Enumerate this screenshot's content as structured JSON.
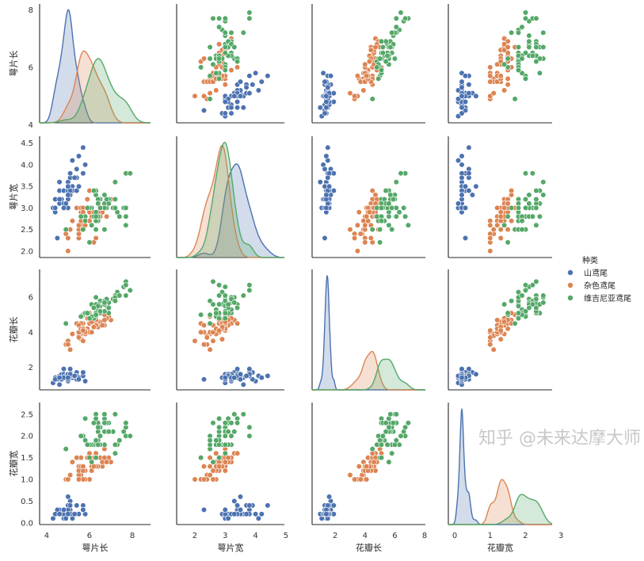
{
  "chart_data": {
    "type": "scatter",
    "subtype": "pairplot",
    "variables": [
      "萼片长",
      "萼片宽",
      "花瓣长",
      "花瓣宽"
    ],
    "diagonal": "kde",
    "grid": false,
    "legend": {
      "title": "种类",
      "placement": "right",
      "entries": [
        "山鸢尾",
        "杂色鸢尾",
        "维吉尼亚鸢尾"
      ]
    },
    "colors": [
      "#4c72b0",
      "#dd8452",
      "#55a868"
    ],
    "axis_ticks": [
      [
        4,
        6,
        8
      ],
      [
        "2.0",
        "2.5",
        "3.0",
        "3.5",
        "4.0",
        "4.5"
      ],
      [
        2,
        4,
        6
      ],
      [
        "0.0",
        "0.5",
        "1.0",
        "1.5",
        "2.0",
        "2.5"
      ]
    ],
    "x_ticks": [
      [
        4,
        6,
        8
      ],
      [
        2,
        3,
        4,
        5
      ],
      [
        2,
        4,
        6,
        8
      ],
      [
        0,
        1,
        2,
        3
      ]
    ],
    "x_ranges": [
      [
        3.67,
        8.85
      ],
      [
        1.4,
        4.95
      ],
      [
        0.45,
        8.05
      ],
      [
        -0.18,
        2.75
      ]
    ],
    "y_ranges": [
      [
        4.07,
        8.2
      ],
      [
        1.85,
        4.66
      ],
      [
        0.7,
        7.6
      ],
      [
        -0.04,
        2.77
      ]
    ],
    "species": [
      {
        "name": "山鸢尾",
        "points": [
          [
            5.1,
            3.5,
            1.4,
            0.2
          ],
          [
            4.9,
            3.0,
            1.4,
            0.2
          ],
          [
            4.7,
            3.2,
            1.3,
            0.2
          ],
          [
            4.6,
            3.1,
            1.5,
            0.2
          ],
          [
            5.0,
            3.6,
            1.4,
            0.2
          ],
          [
            5.4,
            3.9,
            1.7,
            0.4
          ],
          [
            4.6,
            3.4,
            1.4,
            0.3
          ],
          [
            5.0,
            3.4,
            1.5,
            0.2
          ],
          [
            4.4,
            2.9,
            1.4,
            0.2
          ],
          [
            4.9,
            3.1,
            1.5,
            0.1
          ],
          [
            5.4,
            3.7,
            1.5,
            0.2
          ],
          [
            4.8,
            3.4,
            1.6,
            0.2
          ],
          [
            4.8,
            3.0,
            1.4,
            0.1
          ],
          [
            4.3,
            3.0,
            1.1,
            0.1
          ],
          [
            5.8,
            4.0,
            1.2,
            0.2
          ],
          [
            5.7,
            4.4,
            1.5,
            0.4
          ],
          [
            5.4,
            3.9,
            1.3,
            0.4
          ],
          [
            5.1,
            3.5,
            1.4,
            0.3
          ],
          [
            5.7,
            3.8,
            1.7,
            0.3
          ],
          [
            5.1,
            3.8,
            1.5,
            0.3
          ],
          [
            5.4,
            3.4,
            1.7,
            0.2
          ],
          [
            5.1,
            3.7,
            1.5,
            0.4
          ],
          [
            4.6,
            3.6,
            1.0,
            0.2
          ],
          [
            5.1,
            3.3,
            1.7,
            0.5
          ],
          [
            4.8,
            3.4,
            1.9,
            0.2
          ],
          [
            5.0,
            3.0,
            1.6,
            0.2
          ],
          [
            5.0,
            3.4,
            1.6,
            0.4
          ],
          [
            5.2,
            3.5,
            1.5,
            0.2
          ],
          [
            5.2,
            3.4,
            1.4,
            0.2
          ],
          [
            4.7,
            3.2,
            1.6,
            0.2
          ],
          [
            4.8,
            3.1,
            1.6,
            0.2
          ],
          [
            5.4,
            3.4,
            1.5,
            0.4
          ],
          [
            5.2,
            4.1,
            1.5,
            0.1
          ],
          [
            5.5,
            4.2,
            1.4,
            0.2
          ],
          [
            4.9,
            3.1,
            1.5,
            0.1
          ],
          [
            5.0,
            3.2,
            1.2,
            0.2
          ],
          [
            5.5,
            3.5,
            1.3,
            0.2
          ],
          [
            4.9,
            3.1,
            1.5,
            0.1
          ],
          [
            4.4,
            3.0,
            1.3,
            0.2
          ],
          [
            5.1,
            3.4,
            1.5,
            0.2
          ],
          [
            5.0,
            3.5,
            1.3,
            0.3
          ],
          [
            4.5,
            2.3,
            1.3,
            0.3
          ],
          [
            4.4,
            3.2,
            1.3,
            0.2
          ],
          [
            5.0,
            3.5,
            1.6,
            0.6
          ],
          [
            5.1,
            3.8,
            1.9,
            0.4
          ],
          [
            4.8,
            3.0,
            1.4,
            0.3
          ],
          [
            5.1,
            3.8,
            1.6,
            0.2
          ],
          [
            4.6,
            3.2,
            1.4,
            0.2
          ],
          [
            5.3,
            3.7,
            1.5,
            0.2
          ],
          [
            5.0,
            3.3,
            1.4,
            0.2
          ]
        ]
      },
      {
        "name": "杂色鸢尾",
        "points": [
          [
            7.0,
            3.2,
            4.7,
            1.4
          ],
          [
            6.4,
            3.2,
            4.5,
            1.5
          ],
          [
            6.9,
            3.1,
            4.9,
            1.5
          ],
          [
            5.5,
            2.3,
            4.0,
            1.3
          ],
          [
            6.5,
            2.8,
            4.6,
            1.5
          ],
          [
            5.7,
            2.8,
            4.5,
            1.3
          ],
          [
            6.3,
            3.3,
            4.7,
            1.6
          ],
          [
            4.9,
            2.4,
            3.3,
            1.0
          ],
          [
            6.6,
            2.9,
            4.6,
            1.3
          ],
          [
            5.2,
            2.7,
            3.9,
            1.4
          ],
          [
            5.0,
            2.0,
            3.5,
            1.0
          ],
          [
            5.9,
            3.0,
            4.2,
            1.5
          ],
          [
            6.0,
            2.2,
            4.0,
            1.0
          ],
          [
            6.1,
            2.9,
            4.7,
            1.4
          ],
          [
            5.6,
            2.9,
            3.6,
            1.3
          ],
          [
            6.7,
            3.1,
            4.4,
            1.4
          ],
          [
            5.6,
            3.0,
            4.5,
            1.5
          ],
          [
            5.8,
            2.7,
            4.1,
            1.0
          ],
          [
            6.2,
            2.2,
            4.5,
            1.5
          ],
          [
            5.6,
            2.5,
            3.9,
            1.1
          ],
          [
            5.9,
            3.2,
            4.8,
            1.8
          ],
          [
            6.1,
            2.8,
            4.0,
            1.3
          ],
          [
            6.3,
            2.5,
            4.9,
            1.5
          ],
          [
            6.1,
            2.8,
            4.7,
            1.2
          ],
          [
            6.4,
            2.9,
            4.3,
            1.3
          ],
          [
            6.6,
            3.0,
            4.4,
            1.4
          ],
          [
            6.8,
            2.8,
            4.8,
            1.4
          ],
          [
            6.7,
            3.0,
            5.0,
            1.7
          ],
          [
            6.0,
            2.9,
            4.5,
            1.5
          ],
          [
            5.7,
            2.6,
            3.5,
            1.0
          ],
          [
            5.5,
            2.4,
            3.8,
            1.1
          ],
          [
            5.5,
            2.4,
            3.7,
            1.0
          ],
          [
            5.8,
            2.7,
            3.9,
            1.2
          ],
          [
            6.0,
            2.7,
            5.1,
            1.6
          ],
          [
            5.4,
            3.0,
            4.5,
            1.5
          ],
          [
            6.0,
            3.4,
            4.5,
            1.6
          ],
          [
            6.7,
            3.1,
            4.7,
            1.5
          ],
          [
            6.3,
            2.3,
            4.4,
            1.3
          ],
          [
            5.6,
            3.0,
            4.1,
            1.3
          ],
          [
            5.5,
            2.5,
            4.0,
            1.3
          ],
          [
            5.5,
            2.6,
            4.4,
            1.2
          ],
          [
            6.1,
            3.0,
            4.6,
            1.4
          ],
          [
            5.8,
            2.6,
            4.0,
            1.2
          ],
          [
            5.0,
            2.3,
            3.3,
            1.0
          ],
          [
            5.6,
            2.7,
            4.2,
            1.3
          ],
          [
            5.7,
            3.0,
            4.2,
            1.2
          ],
          [
            5.7,
            2.9,
            4.2,
            1.3
          ],
          [
            6.2,
            2.9,
            4.3,
            1.3
          ],
          [
            5.1,
            2.5,
            3.0,
            1.1
          ],
          [
            5.7,
            2.8,
            4.1,
            1.3
          ]
        ]
      },
      {
        "name": "维吉尼亚鸢尾",
        "points": [
          [
            6.3,
            3.3,
            6.0,
            2.5
          ],
          [
            5.8,
            2.7,
            5.1,
            1.9
          ],
          [
            7.1,
            3.0,
            5.9,
            2.1
          ],
          [
            6.3,
            2.9,
            5.6,
            1.8
          ],
          [
            6.5,
            3.0,
            5.8,
            2.2
          ],
          [
            7.6,
            3.0,
            6.6,
            2.1
          ],
          [
            4.9,
            2.5,
            4.5,
            1.7
          ],
          [
            7.3,
            2.9,
            6.3,
            1.8
          ],
          [
            6.7,
            2.5,
            5.8,
            1.8
          ],
          [
            7.2,
            3.6,
            6.1,
            2.5
          ],
          [
            6.5,
            3.2,
            5.1,
            2.0
          ],
          [
            6.4,
            2.7,
            5.3,
            1.9
          ],
          [
            6.8,
            3.0,
            5.5,
            2.1
          ],
          [
            5.7,
            2.5,
            5.0,
            2.0
          ],
          [
            5.8,
            2.8,
            5.1,
            2.4
          ],
          [
            6.4,
            3.2,
            5.3,
            2.3
          ],
          [
            6.5,
            3.0,
            5.5,
            1.8
          ],
          [
            7.7,
            3.8,
            6.7,
            2.2
          ],
          [
            7.7,
            2.6,
            6.9,
            2.3
          ],
          [
            6.0,
            2.2,
            5.0,
            1.5
          ],
          [
            6.9,
            3.2,
            5.7,
            2.3
          ],
          [
            5.6,
            2.8,
            4.9,
            2.0
          ],
          [
            7.7,
            2.8,
            6.7,
            2.0
          ],
          [
            6.3,
            2.7,
            4.9,
            1.8
          ],
          [
            6.7,
            3.3,
            5.7,
            2.1
          ],
          [
            7.2,
            3.2,
            6.0,
            1.8
          ],
          [
            6.2,
            2.8,
            4.8,
            1.8
          ],
          [
            6.1,
            3.0,
            4.9,
            1.8
          ],
          [
            6.4,
            2.8,
            5.6,
            2.1
          ],
          [
            7.2,
            3.0,
            5.8,
            1.6
          ],
          [
            7.4,
            2.8,
            6.1,
            1.9
          ],
          [
            7.9,
            3.8,
            6.4,
            2.0
          ],
          [
            6.4,
            2.8,
            5.6,
            2.2
          ],
          [
            6.3,
            2.8,
            5.1,
            1.5
          ],
          [
            6.1,
            2.6,
            5.6,
            1.4
          ],
          [
            7.7,
            3.0,
            6.1,
            2.3
          ],
          [
            6.3,
            3.4,
            5.6,
            2.4
          ],
          [
            6.4,
            3.1,
            5.5,
            1.8
          ],
          [
            6.0,
            3.0,
            4.8,
            1.8
          ],
          [
            6.9,
            3.1,
            5.4,
            2.1
          ],
          [
            6.7,
            3.1,
            5.6,
            2.4
          ],
          [
            6.9,
            3.1,
            5.1,
            2.3
          ],
          [
            5.8,
            2.7,
            5.1,
            1.9
          ],
          [
            6.8,
            3.2,
            5.9,
            2.3
          ],
          [
            6.7,
            3.3,
            5.7,
            2.5
          ],
          [
            6.7,
            3.0,
            5.2,
            2.3
          ],
          [
            6.3,
            2.5,
            5.0,
            1.9
          ],
          [
            6.5,
            3.0,
            5.2,
            2.0
          ],
          [
            6.2,
            3.4,
            5.4,
            2.3
          ],
          [
            5.9,
            3.0,
            5.1,
            1.8
          ]
        ]
      }
    ]
  },
  "watermark": "知乎 @未来达摩大师"
}
